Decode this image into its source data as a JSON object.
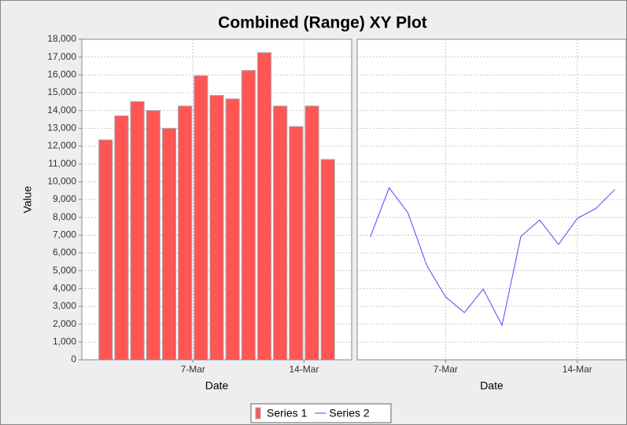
{
  "chart_data": {
    "type": "combined-range-xy",
    "title": "Combined (Range) XY Plot",
    "y_label": "Value",
    "ylim": [
      0,
      18000
    ],
    "yticks": [
      {
        "value": 0,
        "label": "0"
      },
      {
        "value": 1000,
        "label": "1,000"
      },
      {
        "value": 2000,
        "label": "2,000"
      },
      {
        "value": 3000,
        "label": "3,000"
      },
      {
        "value": 4000,
        "label": "4,000"
      },
      {
        "value": 5000,
        "label": "5,000"
      },
      {
        "value": 6000,
        "label": "6,000"
      },
      {
        "value": 7000,
        "label": "7,000"
      },
      {
        "value": 8000,
        "label": "8,000"
      },
      {
        "value": 9000,
        "label": "9,000"
      },
      {
        "value": 10000,
        "label": "10,000"
      },
      {
        "value": 11000,
        "label": "11,000"
      },
      {
        "value": 12000,
        "label": "12,000"
      },
      {
        "value": 13000,
        "label": "13,000"
      },
      {
        "value": 14000,
        "label": "14,000"
      },
      {
        "value": 15000,
        "label": "15,000"
      },
      {
        "value": 16000,
        "label": "16,000"
      },
      {
        "value": 17000,
        "label": "17,000"
      },
      {
        "value": 18000,
        "label": "18,000"
      }
    ],
    "grid": true,
    "legend": "bottom",
    "plots": [
      {
        "type": "bar",
        "x_label": "Date",
        "xlim": [
          0,
          17
        ],
        "xticks": [
          {
            "value": 7,
            "label": "7-Mar"
          },
          {
            "value": 14,
            "label": "14-Mar"
          }
        ],
        "series": [
          {
            "name": "Series 1",
            "color": "#ff5555",
            "x": [
              1,
              2,
              3,
              4,
              5,
              6,
              7,
              8,
              9,
              10,
              11,
              12,
              13,
              14,
              15
            ],
            "values": [
              12350,
              13700,
              14500,
              14000,
              13000,
              14250,
              15950,
              14850,
              14650,
              16250,
              17250,
              14250,
              13100,
              14250,
              11250
            ]
          }
        ]
      },
      {
        "type": "line",
        "x_label": "Date",
        "xlim": [
          2.3,
          16.6
        ],
        "xticks": [
          {
            "value": 7,
            "label": "7-Mar"
          },
          {
            "value": 14,
            "label": "14-Mar"
          }
        ],
        "series": [
          {
            "name": "Series 2",
            "color": "#4a4aff",
            "x": [
              3,
              4,
              5,
              6,
              7,
              8,
              9,
              10,
              11,
              12,
              13,
              14,
              15,
              16
            ],
            "values": [
              6900,
              9660,
              8250,
              5300,
              3530,
              2650,
              3970,
              1940,
              6930,
              7850,
              6480,
              7940,
              8510,
              9570
            ]
          }
        ]
      }
    ]
  }
}
